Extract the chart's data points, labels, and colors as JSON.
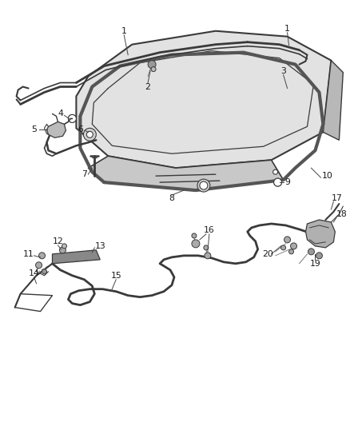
{
  "bg_color": "#ffffff",
  "line_color": "#3a3a3a",
  "label_color": "#1a1a1a",
  "figsize": [
    4.38,
    5.33
  ],
  "dpi": 100,
  "lw_main": 1.4,
  "lw_thin": 0.8,
  "lw_thick": 2.0
}
